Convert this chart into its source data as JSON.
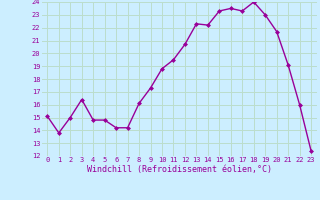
{
  "x": [
    0,
    1,
    2,
    3,
    4,
    5,
    6,
    7,
    8,
    9,
    10,
    11,
    12,
    13,
    14,
    15,
    16,
    17,
    18,
    19,
    20,
    21,
    22,
    23
  ],
  "y": [
    15.1,
    13.8,
    15.0,
    16.4,
    14.8,
    14.8,
    14.2,
    14.2,
    16.1,
    17.3,
    18.8,
    19.5,
    20.7,
    22.3,
    22.2,
    23.3,
    23.5,
    23.3,
    24.0,
    23.0,
    21.7,
    19.1,
    16.0,
    12.4
  ],
  "line_color": "#990099",
  "marker": "D",
  "marker_size": 2.0,
  "bg_color": "#cceeff",
  "grid_color": "#bbddcc",
  "xlabel": "Windchill (Refroidissement éolien,°C)",
  "tick_color": "#990099",
  "ylim": [
    12,
    24
  ],
  "yticks": [
    12,
    13,
    14,
    15,
    16,
    17,
    18,
    19,
    20,
    21,
    22,
    23,
    24
  ],
  "xticks": [
    0,
    1,
    2,
    3,
    4,
    5,
    6,
    7,
    8,
    9,
    10,
    11,
    12,
    13,
    14,
    15,
    16,
    17,
    18,
    19,
    20,
    21,
    22,
    23
  ],
  "xlim": [
    -0.5,
    23.5
  ],
  "line_width": 1.0
}
